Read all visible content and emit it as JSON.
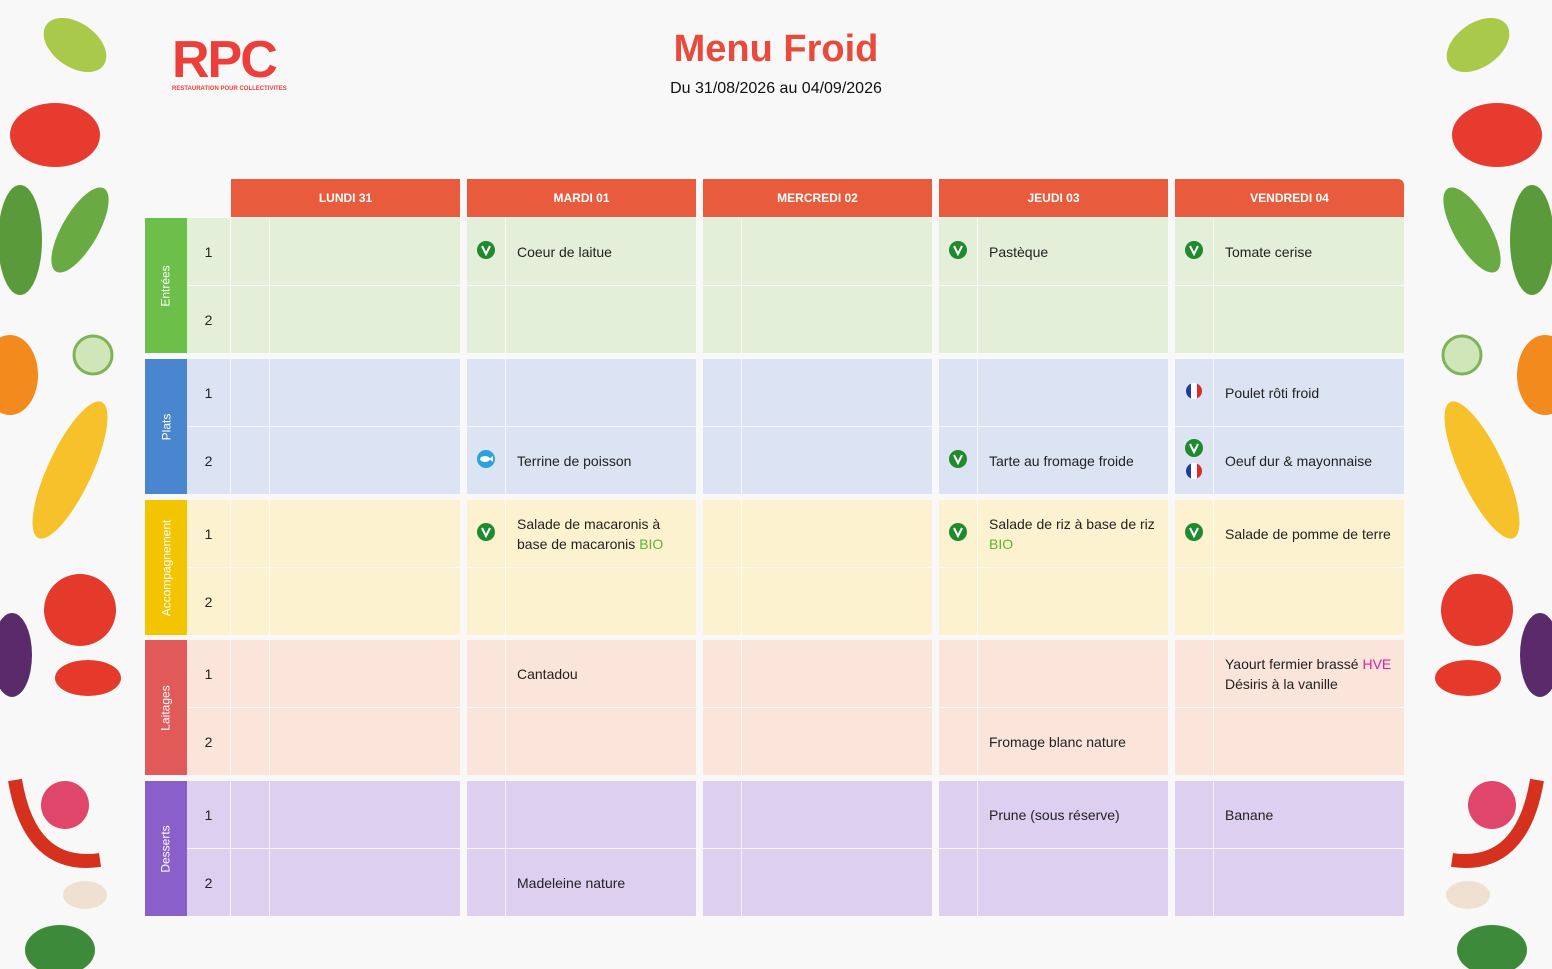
{
  "logo": {
    "text": "RPC",
    "subtitle": "RESTAURATION POUR COLLECTIVITES"
  },
  "header": {
    "title": "Menu Froid",
    "subtitle": "Du 31/08/2026 au 04/09/2026"
  },
  "table": {
    "days": [
      "LUNDI 31",
      "MARDI 01",
      "MERCREDI 02",
      "JEUDI 03",
      "VENDREDI 04"
    ],
    "sections": [
      {
        "name": "Entrées",
        "color": "#6cc04a",
        "bg": "#e4efd9",
        "rows": [
          {
            "number": 1,
            "cells": [
              null,
              {
                "text": "Coeur de laitue",
                "icons": [
                  "vegetarian"
                ]
              },
              null,
              {
                "text": "Pastèque",
                "icons": [
                  "vegetarian"
                ]
              },
              {
                "text": "Tomate cerise",
                "icons": [
                  "vegetarian"
                ]
              }
            ]
          },
          {
            "number": 2,
            "cells": [
              null,
              null,
              null,
              null,
              null
            ]
          }
        ]
      },
      {
        "name": "Plats",
        "color": "#4a86d0",
        "bg": "#dce3f3",
        "rows": [
          {
            "number": 1,
            "cells": [
              null,
              null,
              null,
              null,
              {
                "text": "Poulet rôti froid",
                "icons": [
                  "france"
                ]
              }
            ]
          },
          {
            "number": 2,
            "cells": [
              null,
              {
                "text": "Terrine de poisson",
                "icons": [
                  "fish"
                ]
              },
              null,
              {
                "text": "Tarte au fromage froide",
                "icons": [
                  "vegetarian"
                ]
              },
              {
                "text": "Oeuf dur & mayonnaise",
                "icons": [
                  "vegetarian",
                  "france"
                ]
              }
            ]
          }
        ]
      },
      {
        "name": "Accompagnement",
        "color": "#f2c500",
        "bg": "#fdf2d0",
        "rows": [
          {
            "number": 1,
            "cells": [
              null,
              {
                "text": "Salade de macaronis à base de macaronis",
                "tag": "BIO",
                "tag_color": "#5cb531",
                "icons": [
                  "vegetarian"
                ]
              },
              null,
              {
                "text": "Salade de riz à base de riz",
                "tag": "BIO",
                "tag_color": "#5cb531",
                "icons": [
                  "vegetarian"
                ]
              },
              {
                "text": "Salade de pomme de terre",
                "icons": [
                  "vegetarian"
                ]
              }
            ]
          },
          {
            "number": 2,
            "cells": [
              null,
              null,
              null,
              null,
              null
            ]
          }
        ]
      },
      {
        "name": "Laitages",
        "color": "#e05a5a",
        "bg": "#fbe4d9",
        "rows": [
          {
            "number": 1,
            "cells": [
              null,
              {
                "text": "Cantadou"
              },
              null,
              null,
              {
                "text": "Yaourt fermier brassé",
                "tag": "HVE",
                "tag_color": "#e0219b",
                "note": "Désiris à la vanille"
              }
            ]
          },
          {
            "number": 2,
            "cells": [
              null,
              null,
              null,
              {
                "text": "Fromage blanc nature"
              },
              null
            ]
          }
        ]
      },
      {
        "name": "Desserts",
        "color": "#8a5fc9",
        "bg": "#dccff0",
        "rows": [
          {
            "number": 1,
            "cells": [
              null,
              null,
              null,
              {
                "text": "Prune (sous réserve)"
              },
              {
                "text": "Banane"
              }
            ]
          },
          {
            "number": 2,
            "cells": [
              null,
              {
                "text": "Madeleine nature"
              },
              null,
              null,
              null
            ]
          }
        ]
      }
    ]
  }
}
